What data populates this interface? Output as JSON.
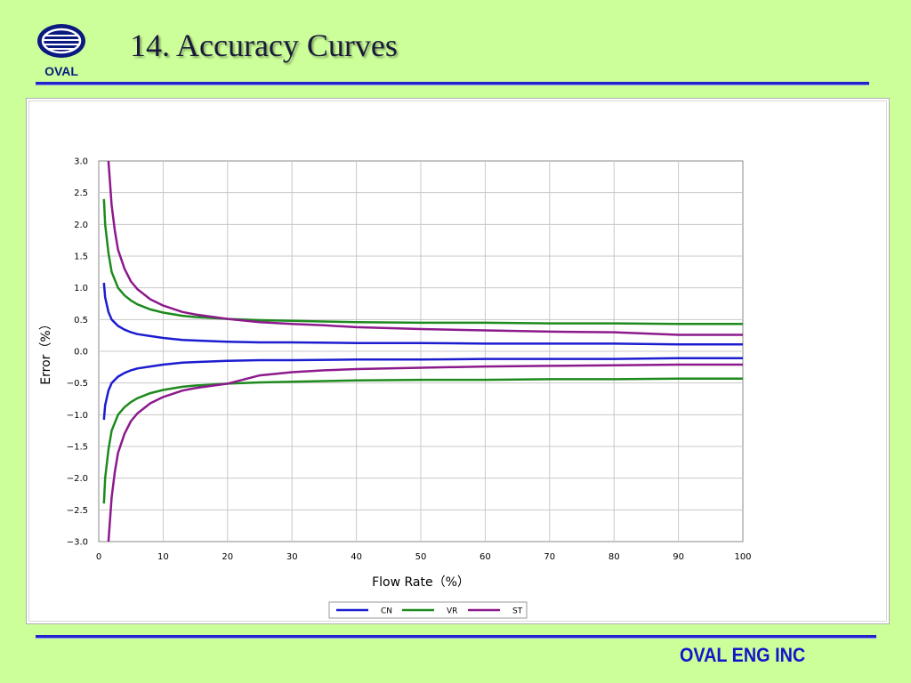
{
  "header": {
    "logo_text": "OVAL",
    "title": "14. Accuracy Curves"
  },
  "footer": {
    "company": "OVAL ENG INC"
  },
  "colors": {
    "background": "#ccff99",
    "rule": "#2222cc",
    "CN": "#1c1cd0",
    "VR": "#1e8a1e",
    "ST": "#8c1a8c"
  },
  "chart_data": {
    "type": "line",
    "title": "",
    "xlabel": "Flow Rate（%）",
    "ylabel": "Error（%）",
    "xlim": [
      0,
      100
    ],
    "ylim": [
      -3.0,
      3.0
    ],
    "xticks": [
      "0",
      "10",
      "20",
      "30",
      "40",
      "50",
      "60",
      "70",
      "80",
      "90",
      "100"
    ],
    "yticks": [
      "3.0",
      "2.5",
      "2.0",
      "1.5",
      "1.0",
      "0.5",
      "0.0",
      "−0.5",
      "−1.0",
      "−1.5",
      "−2.0",
      "−2.5",
      "−3.0"
    ],
    "grid": true,
    "legend_position": "bottom",
    "series": [
      {
        "name": "CN",
        "x": [
          0.8,
          1,
          1.5,
          2,
          3,
          4,
          5,
          6,
          8,
          10,
          13,
          15,
          20,
          25,
          30,
          40,
          50,
          60,
          70,
          80,
          90,
          100
        ],
        "upper": [
          1.08,
          0.85,
          0.62,
          0.5,
          0.4,
          0.34,
          0.3,
          0.27,
          0.24,
          0.21,
          0.18,
          0.17,
          0.15,
          0.14,
          0.14,
          0.13,
          0.13,
          0.12,
          0.12,
          0.12,
          0.11,
          0.11
        ],
        "lower": [
          -1.08,
          -0.85,
          -0.62,
          -0.5,
          -0.4,
          -0.34,
          -0.3,
          -0.27,
          -0.24,
          -0.21,
          -0.18,
          -0.17,
          -0.15,
          -0.14,
          -0.14,
          -0.13,
          -0.13,
          -0.12,
          -0.12,
          -0.12,
          -0.11,
          -0.11
        ]
      },
      {
        "name": "VR",
        "x": [
          0.8,
          1,
          1.5,
          2,
          3,
          4,
          5,
          6,
          8,
          10,
          13,
          15,
          20,
          25,
          30,
          40,
          50,
          60,
          70,
          80,
          90,
          100
        ],
        "upper": [
          2.4,
          2.0,
          1.55,
          1.25,
          1.0,
          0.88,
          0.8,
          0.74,
          0.66,
          0.61,
          0.56,
          0.54,
          0.51,
          0.49,
          0.48,
          0.46,
          0.45,
          0.45,
          0.44,
          0.44,
          0.43,
          0.43
        ],
        "lower": [
          -2.4,
          -2.0,
          -1.55,
          -1.25,
          -1.0,
          -0.88,
          -0.8,
          -0.74,
          -0.66,
          -0.61,
          -0.56,
          -0.54,
          -0.51,
          -0.49,
          -0.48,
          -0.46,
          -0.45,
          -0.45,
          -0.44,
          -0.44,
          -0.43,
          -0.43
        ]
      },
      {
        "name": "ST",
        "x": [
          1.5,
          2,
          2.5,
          3,
          4,
          5,
          6,
          8,
          10,
          13,
          15,
          20,
          25,
          30,
          35,
          40,
          50,
          60,
          70,
          80,
          90,
          100
        ],
        "upper": [
          3.0,
          2.3,
          1.9,
          1.6,
          1.3,
          1.1,
          0.98,
          0.82,
          0.72,
          0.62,
          0.58,
          0.51,
          0.46,
          0.43,
          0.41,
          0.38,
          0.35,
          0.33,
          0.31,
          0.3,
          0.26,
          0.26
        ],
        "lower": [
          -3.0,
          -2.3,
          -1.9,
          -1.6,
          -1.3,
          -1.1,
          -0.98,
          -0.82,
          -0.72,
          -0.62,
          -0.58,
          -0.51,
          -0.38,
          -0.33,
          -0.3,
          -0.28,
          -0.26,
          -0.24,
          -0.23,
          -0.22,
          -0.21,
          -0.21
        ]
      }
    ]
  }
}
